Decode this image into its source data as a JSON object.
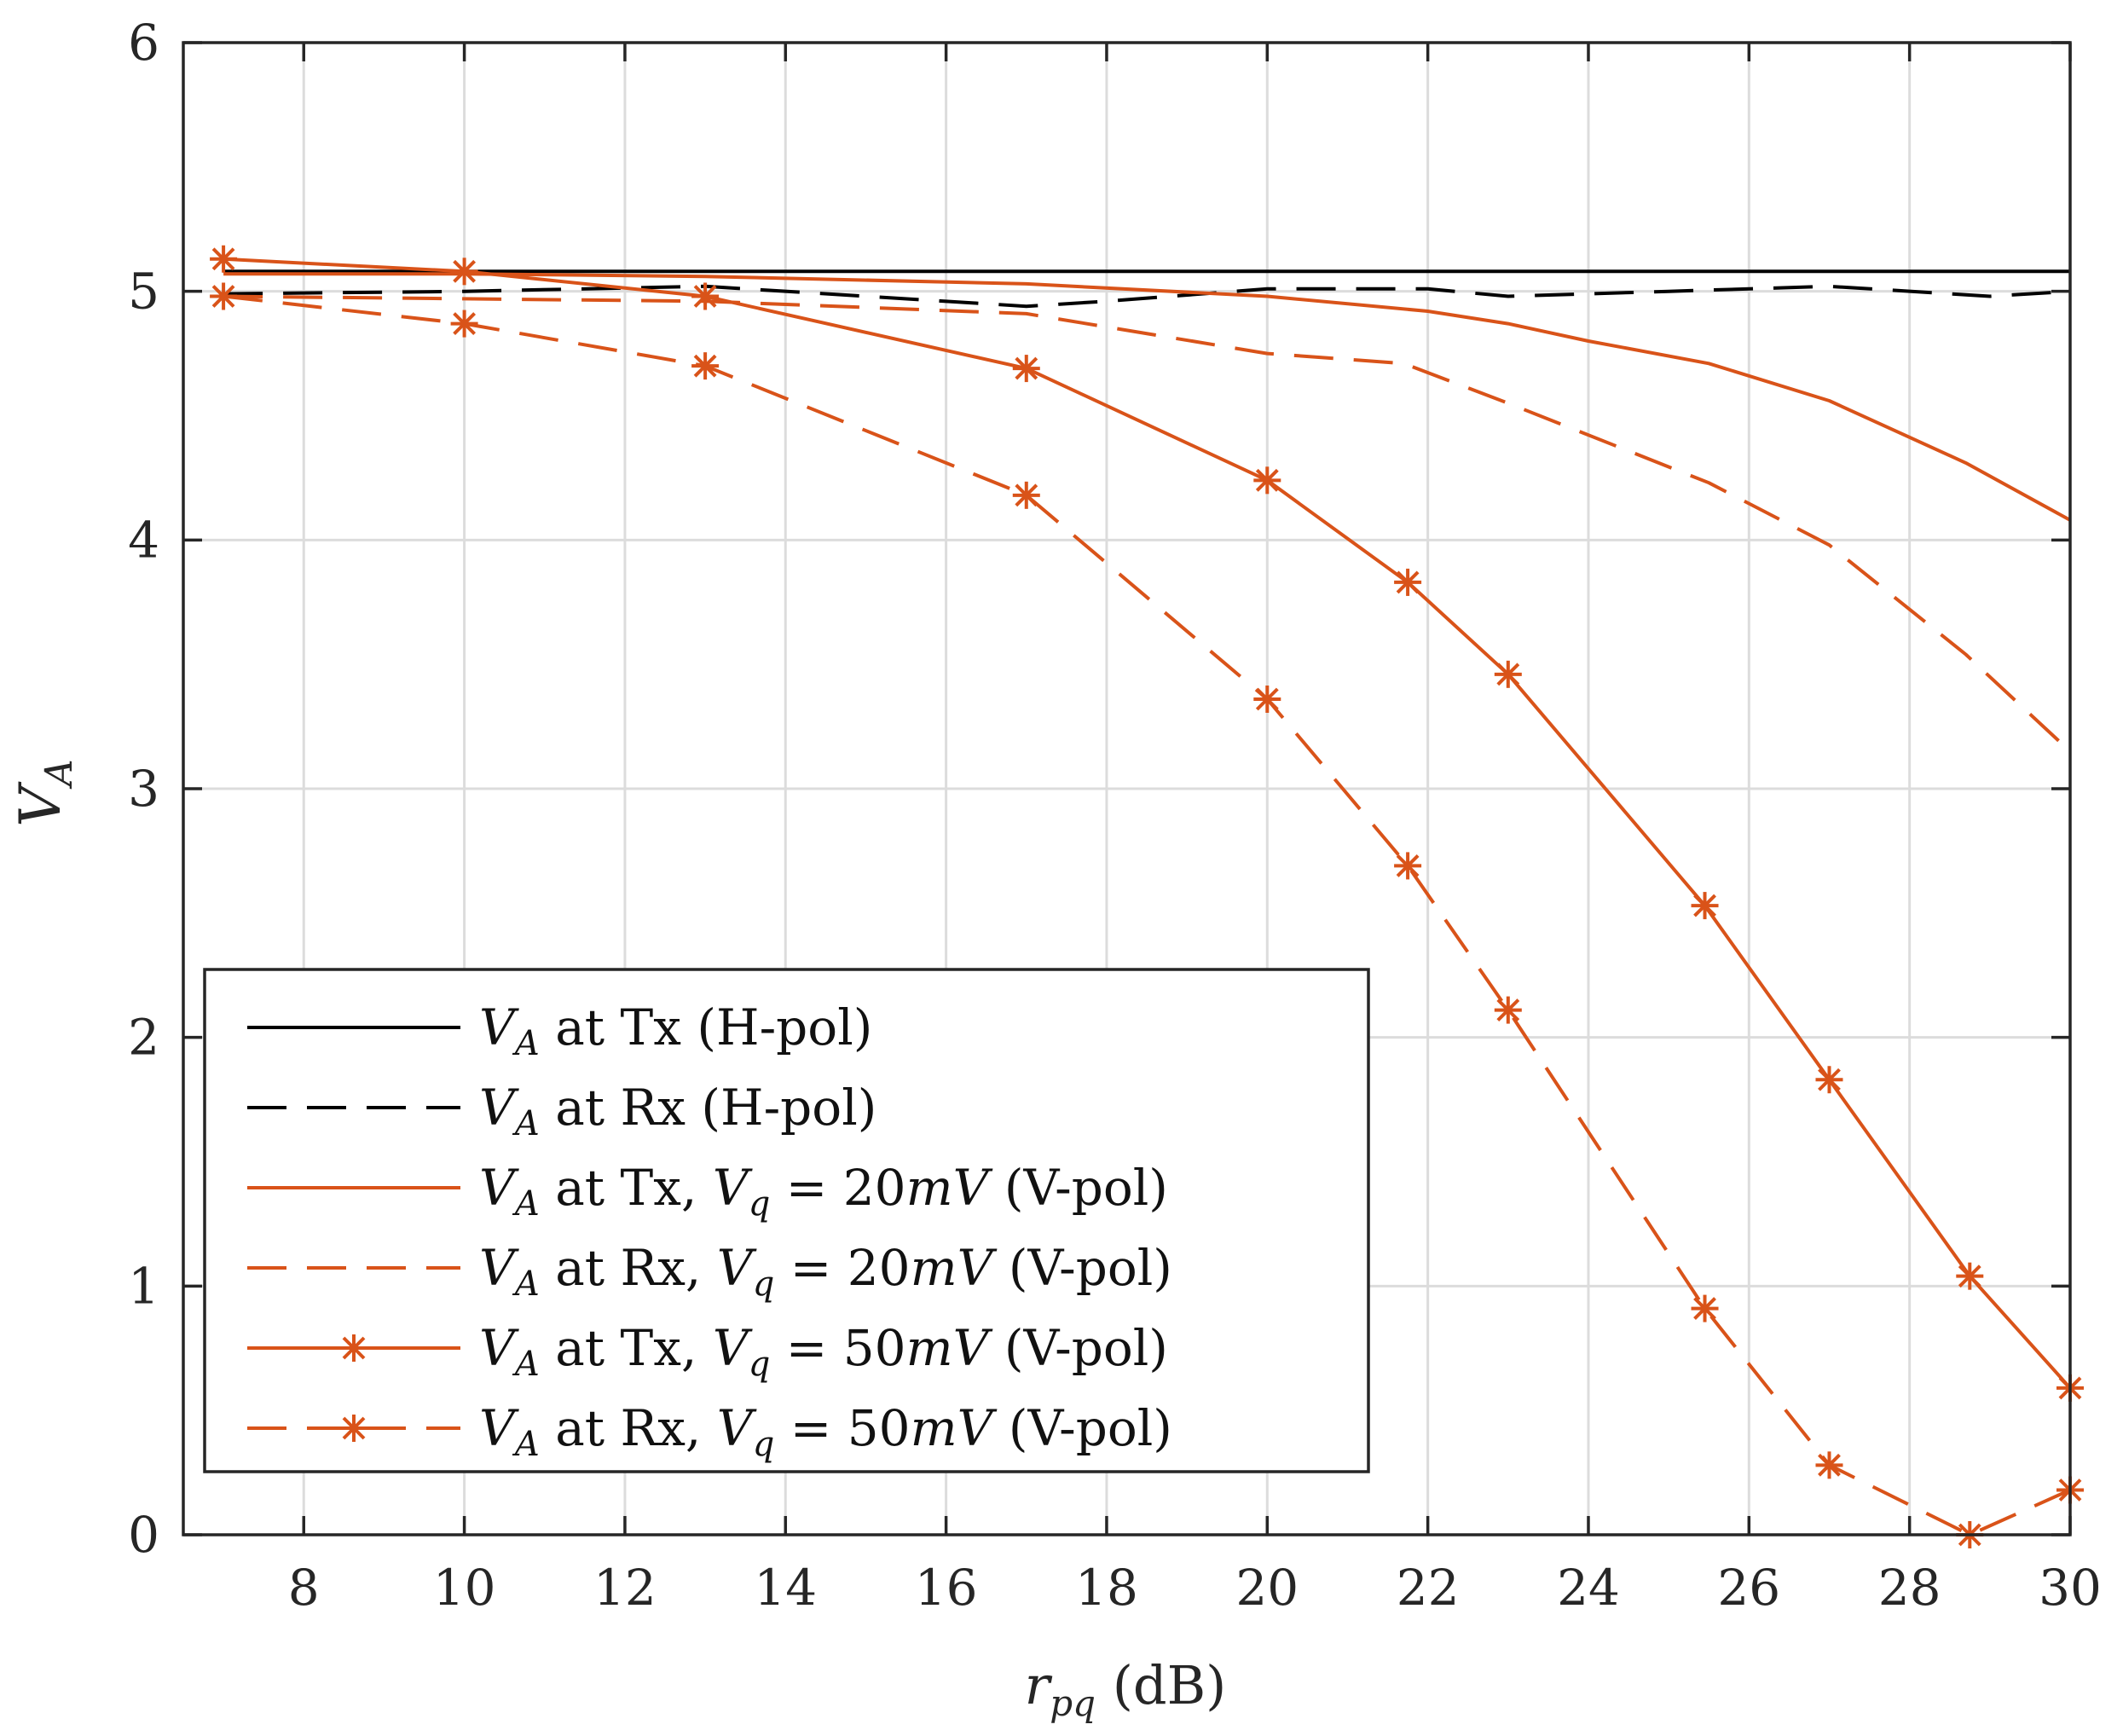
{
  "chart_data": {
    "type": "line",
    "title": "",
    "xlabel": "r_pq (dB)",
    "ylabel": "V_A",
    "xlim": [
      6.5,
      30
    ],
    "ylim": [
      0,
      6
    ],
    "xticks": [
      8,
      10,
      12,
      14,
      16,
      18,
      20,
      22,
      24,
      26,
      28,
      30
    ],
    "yticks": [
      0,
      1,
      2,
      3,
      4,
      5,
      6
    ],
    "grid": true,
    "legend_position": "bottom-left",
    "series": [
      {
        "name": "V_A at Tx (H-pol)",
        "color": "#000000",
        "dash": "solid",
        "marker": "none",
        "x": [
          7,
          10,
          13,
          17,
          20,
          22,
          24,
          26,
          28,
          30
        ],
        "y": [
          5.08,
          5.08,
          5.08,
          5.08,
          5.08,
          5.08,
          5.08,
          5.08,
          5.08,
          5.08
        ]
      },
      {
        "name": "V_A at Rx (H-pol)",
        "color": "#000000",
        "dash": "dashed",
        "marker": "none",
        "x": [
          7,
          10,
          13,
          15,
          17,
          18,
          20,
          22,
          23,
          25,
          27,
          29,
          30
        ],
        "y": [
          4.99,
          5.0,
          5.02,
          4.98,
          4.94,
          4.96,
          5.01,
          5.01,
          4.98,
          5.0,
          5.02,
          4.98,
          5.0
        ]
      },
      {
        "name": "V_A at Tx, V_q = 20mV (V-pol)",
        "color": "#d95319",
        "dash": "solid",
        "marker": "none",
        "x": [
          7,
          10,
          13,
          17,
          20,
          22,
          23,
          24,
          25.5,
          27,
          28.7,
          30
        ],
        "y": [
          5.07,
          5.07,
          5.06,
          5.03,
          4.98,
          4.92,
          4.87,
          4.8,
          4.71,
          4.56,
          4.31,
          4.08
        ]
      },
      {
        "name": "V_A at Rx, V_q = 20mV (V-pol)",
        "color": "#d95319",
        "dash": "dashed",
        "marker": "none",
        "x": [
          7,
          10,
          13,
          17,
          20,
          21.7,
          23,
          25.5,
          27,
          28.7,
          30
        ],
        "y": [
          4.98,
          4.97,
          4.96,
          4.91,
          4.75,
          4.71,
          4.55,
          4.23,
          3.98,
          3.54,
          3.15
        ]
      },
      {
        "name": "V_A at Tx, V_q = 50mV (V-pol)",
        "color": "#d95319",
        "dash": "solid",
        "marker": "asterisk",
        "x": [
          7,
          10,
          13,
          17,
          20,
          21.75,
          23,
          25.45,
          27,
          28.75,
          30
        ],
        "y": [
          5.13,
          5.08,
          4.98,
          4.69,
          4.24,
          3.83,
          3.46,
          2.53,
          1.83,
          1.04,
          0.59
        ]
      },
      {
        "name": "V_A at Rx, V_q = 50mV (V-pol)",
        "color": "#d95319",
        "dash": "dashed",
        "marker": "asterisk",
        "x": [
          7,
          10,
          13,
          17,
          20,
          21.75,
          23,
          25.45,
          27,
          28.75,
          30
        ],
        "y": [
          4.98,
          4.87,
          4.7,
          4.18,
          3.36,
          2.69,
          2.11,
          0.91,
          0.28,
          0.0,
          0.18
        ]
      }
    ]
  }
}
